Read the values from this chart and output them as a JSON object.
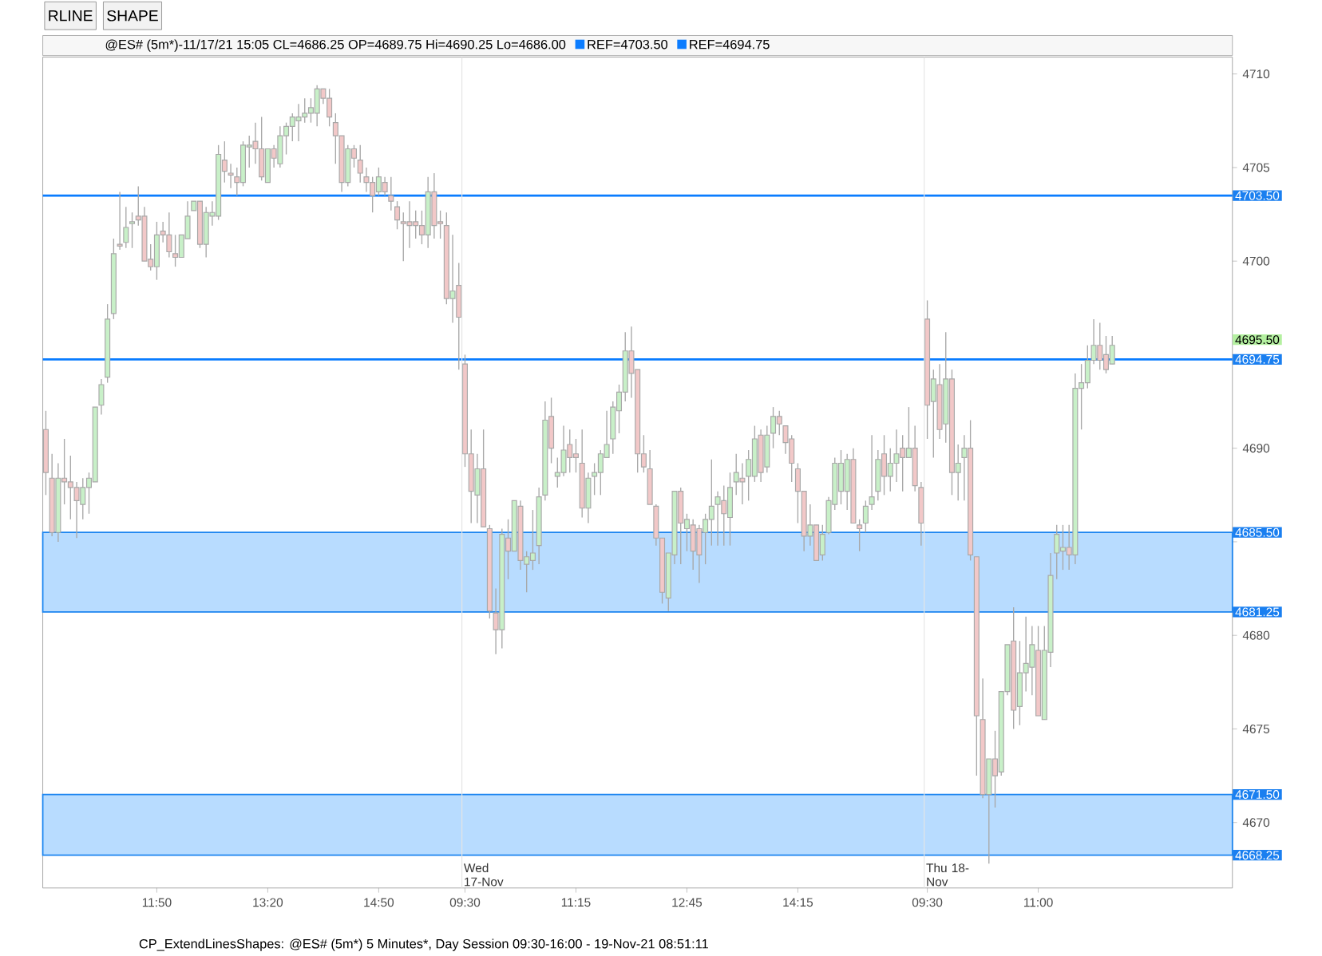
{
  "chart_data": {
    "type": "candlestick",
    "title": "@ES# (5m*)-11/17/21 15:05 CL=4686.25 OP=4689.75 Hi=4690.25 Lo=4686.00",
    "ylim": [
      4666.5,
      4710.9
    ],
    "yticks": [
      4670,
      4675,
      4680,
      {
        "value": 4685,
        "label": null
      },
      4690,
      {
        "value": 4695,
        "label": null
      },
      4700,
      4705,
      4710,
      {
        "value": 4703.5,
        "label": "4703.50"
      },
      {
        "value": 4695.5,
        "label": "4695.50"
      },
      {
        "value": 4694.75,
        "label": "4694.75"
      },
      {
        "value": 4685.5,
        "label": "4685.50"
      },
      {
        "value": 4681.25,
        "label": "4681.25"
      },
      {
        "value": 4671.5,
        "label": "4671.50"
      },
      {
        "value": 4668.25,
        "label": "4668.25"
      }
    ],
    "legend": "top",
    "categories": [
      null,
      null,
      null,
      null,
      null,
      null,
      null,
      null,
      null,
      null,
      null,
      null,
      null,
      null,
      null,
      null,
      null,
      null,
      "11:50",
      null,
      null,
      null,
      null,
      null,
      null,
      null,
      null,
      null,
      null,
      null,
      null,
      null,
      null,
      null,
      null,
      null,
      "13:20",
      null,
      null,
      null,
      null,
      null,
      null,
      null,
      null,
      null,
      null,
      null,
      null,
      null,
      null,
      null,
      null,
      null,
      "14:50",
      null,
      null,
      null,
      null,
      null,
      null,
      null,
      null,
      null,
      null,
      null,
      null,
      null,
      "09:30",
      null,
      null,
      null,
      null,
      null,
      null,
      null,
      null,
      null,
      null,
      null,
      null,
      null,
      null,
      null,
      null,
      null,
      "11:15",
      null,
      null,
      null,
      null,
      null,
      null,
      null,
      null,
      null,
      null,
      null,
      null,
      null,
      null,
      null,
      null,
      null,
      "12:45",
      null,
      null,
      null,
      null,
      null,
      null,
      null,
      null,
      null,
      null,
      null,
      null,
      null,
      null,
      null,
      null,
      null,
      "14:15",
      null,
      null,
      null,
      null,
      null,
      null,
      null,
      null,
      null,
      null,
      null,
      null,
      null,
      null,
      null,
      null,
      null,
      null,
      null,
      null,
      "09:30",
      null,
      null,
      null,
      null,
      null,
      null,
      null,
      null,
      null,
      null,
      null,
      null,
      null,
      null,
      null,
      null,
      null,
      "11:00",
      null,
      null,
      null,
      null,
      null,
      null,
      null,
      null,
      null,
      null,
      null,
      null,
      null,
      null,
      null,
      null,
      null,
      null,
      null,
      null,
      null,
      null,
      null,
      null,
      null,
      null,
      null,
      null,
      null,
      null,
      null
    ],
    "ohlc": [
      [
        4691.0,
        4692.0,
        4687.5,
        4688.7
      ],
      [
        4688.4,
        4689.7,
        4685.3,
        4685.5
      ],
      [
        4685.5,
        4689.2,
        4685.0,
        4688.4
      ],
      [
        4688.4,
        4690.5,
        4687.0,
        4688.2
      ],
      [
        4688.2,
        4689.6,
        4686.2,
        4687.9
      ],
      [
        4687.9,
        4688.2,
        4685.2,
        4687.2
      ],
      [
        4687.0,
        4688.4,
        4686.2,
        4687.9
      ],
      [
        4687.9,
        4688.7,
        4686.5,
        4688.4
      ],
      [
        4688.2,
        4692.2,
        4688.2,
        4692.2
      ],
      [
        4692.3,
        4693.7,
        4691.8,
        4693.4
      ],
      [
        4693.8,
        4697.7,
        4693.5,
        4696.9
      ],
      [
        4697.2,
        4701.2,
        4696.9,
        4700.4
      ],
      [
        4700.9,
        4703.7,
        4700.6,
        4700.8
      ],
      [
        4701.0,
        4702.9,
        4700.7,
        4701.8
      ],
      [
        4702.0,
        4702.6,
        4700.7,
        4702.1
      ],
      [
        4702.4,
        4704.0,
        4701.9,
        4702.2
      ],
      [
        4702.4,
        4702.9,
        4700.0,
        4700.0
      ],
      [
        4700.1,
        4700.9,
        4699.5,
        4699.7
      ],
      [
        4699.7,
        4702.1,
        4699.0,
        4701.4
      ],
      [
        4701.6,
        4702.1,
        4701.0,
        4701.4
      ],
      [
        4701.4,
        4702.6,
        4700.2,
        4700.5
      ],
      [
        4700.4,
        4701.4,
        4699.7,
        4700.2
      ],
      [
        4700.2,
        4701.4,
        4700.2,
        4701.4
      ],
      [
        4701.2,
        4703.2,
        4701.2,
        4702.4
      ],
      [
        4702.7,
        4703.2,
        4702.7,
        4703.2
      ],
      [
        4703.2,
        4703.2,
        4700.7,
        4700.9
      ],
      [
        4700.9,
        4702.9,
        4700.2,
        4702.6
      ],
      [
        4702.4,
        4703.2,
        4701.9,
        4702.6
      ],
      [
        4702.4,
        4706.2,
        4702.2,
        4705.7
      ],
      [
        4705.4,
        4706.4,
        4704.2,
        4704.8
      ],
      [
        4704.7,
        4705.2,
        4703.9,
        4704.6
      ],
      [
        4704.5,
        4705.0,
        4703.5,
        4704.2
      ],
      [
        4704.2,
        4706.4,
        4704.0,
        4706.2
      ],
      [
        4706.1,
        4706.7,
        4705.0,
        4706.2
      ],
      [
        4706.4,
        4707.4,
        4705.2,
        4706.0
      ],
      [
        4706.0,
        4707.7,
        4704.3,
        4704.5
      ],
      [
        4704.2,
        4706.0,
        4704.2,
        4706.0
      ],
      [
        4706.0,
        4706.2,
        4705.0,
        4705.5
      ],
      [
        4705.2,
        4707.2,
        4705.0,
        4706.7
      ],
      [
        4706.7,
        4707.4,
        4705.7,
        4707.2
      ],
      [
        4707.2,
        4707.9,
        4706.4,
        4707.7
      ],
      [
        4707.5,
        4708.4,
        4706.4,
        4707.7
      ],
      [
        4707.7,
        4708.7,
        4707.4,
        4707.9
      ],
      [
        4707.9,
        4708.7,
        4707.4,
        4708.2
      ],
      [
        4707.9,
        4709.4,
        4707.2,
        4709.2
      ],
      [
        4709.2,
        4709.2,
        4708.4,
        4708.7
      ],
      [
        4708.7,
        4709.2,
        4707.2,
        4707.7
      ],
      [
        4707.4,
        4707.9,
        4705.2,
        4706.7
      ],
      [
        4706.7,
        4706.7,
        4703.7,
        4704.2
      ],
      [
        4704.2,
        4706.2,
        4704.0,
        4706.0
      ],
      [
        4706.0,
        4706.2,
        4705.0,
        4705.5
      ],
      [
        4705.4,
        4706.2,
        4704.2,
        4704.7
      ],
      [
        4704.5,
        4705.0,
        4703.7,
        4704.2
      ],
      [
        4704.2,
        4704.5,
        4702.6,
        4703.5
      ],
      [
        4703.7,
        4705.0,
        4703.5,
        4704.5
      ],
      [
        4704.2,
        4704.5,
        4703.5,
        4703.7
      ],
      [
        4703.5,
        4704.5,
        4702.7,
        4703.2
      ],
      [
        4702.9,
        4703.2,
        4701.7,
        4702.2
      ],
      [
        4702.1,
        4702.6,
        4700.0,
        4702.0
      ],
      [
        4702.1,
        4703.2,
        4700.7,
        4701.9
      ],
      [
        4702.1,
        4702.7,
        4701.2,
        4701.9
      ],
      [
        4701.9,
        4702.7,
        4700.9,
        4701.4
      ],
      [
        4701.4,
        4704.5,
        4700.7,
        4703.7
      ],
      [
        4703.7,
        4704.7,
        4701.2,
        4701.9
      ],
      [
        4702.1,
        4702.7,
        4701.2,
        4702.0
      ],
      [
        4701.9,
        4702.6,
        4697.7,
        4698.0
      ],
      [
        4698.0,
        4701.4,
        4696.7,
        4698.4
      ],
      [
        4698.7,
        4699.9,
        4694.2,
        4697.0
      ],
      [
        4694.5,
        4695.0,
        4689.0,
        4689.7
      ],
      [
        4689.7,
        4691.0,
        4686.0,
        4687.7
      ],
      [
        4687.5,
        4689.7,
        4686.0,
        4688.9
      ],
      [
        4688.9,
        4691.0,
        4685.8,
        4685.8
      ],
      [
        4685.7,
        4685.9,
        4680.9,
        4681.3
      ],
      [
        4681.2,
        4682.5,
        4679.0,
        4680.3
      ],
      [
        4680.3,
        4685.7,
        4679.3,
        4685.4
      ],
      [
        4685.2,
        4686.2,
        4683.0,
        4684.5
      ],
      [
        4684.5,
        4687.2,
        4684.5,
        4687.2
      ],
      [
        4686.9,
        4687.2,
        4683.5,
        4684.0
      ],
      [
        4683.8,
        4684.5,
        4682.3,
        4684.2
      ],
      [
        4684.0,
        4686.7,
        4683.5,
        4684.4
      ],
      [
        4684.8,
        4687.9,
        4683.8,
        4687.4
      ],
      [
        4687.5,
        4692.5,
        4687.2,
        4691.5
      ],
      [
        4691.7,
        4692.7,
        4689.2,
        4690.0
      ],
      [
        4688.5,
        4689.5,
        4687.9,
        4688.7
      ],
      [
        4688.7,
        4691.2,
        4688.5,
        4689.9
      ],
      [
        4690.2,
        4691.0,
        4688.7,
        4689.5
      ],
      [
        4689.7,
        4690.5,
        4688.7,
        4689.5
      ],
      [
        4689.2,
        4691.0,
        4686.3,
        4686.8
      ],
      [
        4686.8,
        4688.7,
        4686.0,
        4688.4
      ],
      [
        4688.5,
        4689.2,
        4687.5,
        4688.7
      ],
      [
        4688.7,
        4689.9,
        4687.5,
        4689.7
      ],
      [
        4689.5,
        4692.0,
        4689.5,
        4690.2
      ],
      [
        4690.5,
        4692.5,
        4689.7,
        4692.2
      ],
      [
        4692.0,
        4693.4,
        4690.8,
        4693.0
      ],
      [
        4693.0,
        4696.2,
        4692.5,
        4695.2
      ],
      [
        4695.2,
        4696.5,
        4692.7,
        4694.0
      ],
      [
        4694.2,
        4694.2,
        4688.7,
        4689.7
      ],
      [
        4689.7,
        4690.7,
        4688.7,
        4689.0
      ],
      [
        4688.9,
        4689.9,
        4687.0,
        4687.0
      ],
      [
        4686.9,
        4687.0,
        4684.8,
        4685.2
      ],
      [
        4685.2,
        4685.2,
        4681.7,
        4682.3
      ],
      [
        4682.0,
        4684.4,
        4681.3,
        4684.4
      ],
      [
        4684.3,
        4687.7,
        4683.8,
        4687.7
      ],
      [
        4687.7,
        4687.9,
        4683.8,
        4686.0
      ],
      [
        4685.7,
        4686.5,
        4684.5,
        4686.2
      ],
      [
        4685.9,
        4686.2,
        4683.5,
        4684.5
      ],
      [
        4685.7,
        4685.9,
        4682.8,
        4684.3
      ],
      [
        4685.5,
        4686.5,
        4683.8,
        4686.2
      ],
      [
        4686.2,
        4689.4,
        4684.8,
        4686.9
      ],
      [
        4687.0,
        4687.7,
        4684.8,
        4687.4
      ],
      [
        4687.2,
        4688.0,
        4684.8,
        4686.5
      ],
      [
        4686.3,
        4688.7,
        4684.8,
        4687.9
      ],
      [
        4688.2,
        4689.7,
        4687.5,
        4688.7
      ],
      [
        4688.4,
        4689.2,
        4687.0,
        4688.2
      ],
      [
        4688.5,
        4689.9,
        4687.2,
        4689.4
      ],
      [
        4688.5,
        4691.2,
        4688.2,
        4690.5
      ],
      [
        4690.7,
        4691.0,
        4688.2,
        4688.7
      ],
      [
        4689.0,
        4691.2,
        4688.7,
        4690.7
      ],
      [
        4690.8,
        4692.2,
        4690.0,
        4691.7
      ],
      [
        4691.7,
        4692.0,
        4690.7,
        4691.3
      ],
      [
        4691.2,
        4691.2,
        4689.7,
        4690.3
      ],
      [
        4690.5,
        4690.7,
        4688.2,
        4689.2
      ],
      [
        4688.9,
        4689.2,
        4686.0,
        4687.7
      ],
      [
        4687.7,
        4687.7,
        4684.5,
        4685.3
      ],
      [
        4685.3,
        4687.0,
        4684.8,
        4685.9
      ],
      [
        4685.9,
        4685.9,
        4684.0,
        4684.0
      ],
      [
        4684.3,
        4685.9,
        4684.0,
        4685.4
      ],
      [
        4685.5,
        4687.4,
        4685.4,
        4687.2
      ],
      [
        4687.0,
        4689.5,
        4686.7,
        4689.2
      ],
      [
        4687.7,
        4689.9,
        4687.0,
        4689.2
      ],
      [
        4687.7,
        4689.7,
        4686.7,
        4689.4
      ],
      [
        4689.4,
        4690.0,
        4686.0,
        4686.0
      ],
      [
        4685.9,
        4686.2,
        4684.5,
        4685.7
      ],
      [
        4686.0,
        4687.2,
        4685.5,
        4686.9
      ],
      [
        4687.0,
        4690.7,
        4686.7,
        4687.4
      ],
      [
        4687.7,
        4689.9,
        4687.2,
        4689.4
      ],
      [
        4689.7,
        4690.7,
        4687.5,
        4688.5
      ],
      [
        4688.5,
        4690.0,
        4687.7,
        4689.2
      ],
      [
        4689.2,
        4691.0,
        4688.2,
        4689.7
      ],
      [
        4690.0,
        4690.7,
        4687.7,
        4689.5
      ],
      [
        4689.5,
        4692.2,
        4689.5,
        4690.0
      ],
      [
        4690.0,
        4691.2,
        4687.7,
        4688.0
      ],
      [
        4687.9,
        4688.2,
        4684.8,
        4686.0
      ],
      [
        4696.9,
        4697.9,
        4690.5,
        4692.3
      ],
      [
        4692.5,
        4694.2,
        4689.5,
        4693.7
      ],
      [
        4693.4,
        4694.5,
        4690.5,
        4691.0
      ],
      [
        4691.3,
        4696.2,
        4690.3,
        4693.7
      ],
      [
        4693.7,
        4694.2,
        4687.5,
        4688.7
      ],
      [
        4688.7,
        4690.2,
        4687.2,
        4689.2
      ],
      [
        4689.5,
        4690.7,
        4687.2,
        4690.0
      ],
      [
        4690.0,
        4691.5,
        4684.0,
        4684.3
      ],
      [
        4684.2,
        4684.2,
        4672.5,
        4675.7
      ],
      [
        4675.5,
        4677.7,
        4671.3,
        4671.5
      ],
      [
        4671.5,
        4673.4,
        4667.8,
        4673.4
      ],
      [
        4673.4,
        4674.9,
        4670.8,
        4672.5
      ],
      [
        4672.7,
        4677.0,
        4672.5,
        4677.0
      ],
      [
        4677.0,
        4679.5,
        4676.8,
        4679.5
      ],
      [
        4679.7,
        4681.5,
        4675.0,
        4676.0
      ],
      [
        4676.2,
        4679.7,
        4675.2,
        4678.0
      ],
      [
        4678.0,
        4681.0,
        4677.0,
        4678.5
      ],
      [
        4678.3,
        4680.5,
        4676.8,
        4679.5
      ],
      [
        4679.2,
        4680.5,
        4675.7,
        4675.7
      ],
      [
        4675.5,
        4680.5,
        4675.5,
        4679.2
      ],
      [
        4679.1,
        4684.4,
        4678.3,
        4683.2
      ],
      [
        4684.4,
        4685.9,
        4683.0,
        4685.4
      ],
      [
        4684.5,
        4685.9,
        4683.5,
        4684.7
      ],
      [
        4684.7,
        4685.9,
        4683.5,
        4684.3
      ],
      [
        4684.3,
        4694.0,
        4683.8,
        4693.2
      ],
      [
        4693.2,
        4694.5,
        4691.0,
        4693.5
      ],
      [
        4693.5,
        4695.5,
        4693.2,
        4694.7
      ],
      [
        4694.7,
        4696.9,
        4694.5,
        4695.5
      ],
      [
        4695.5,
        4696.7,
        4694.2,
        4694.7
      ],
      [
        4695.0,
        4696.0,
        4694.0,
        4694.2
      ],
      [
        4694.5,
        4696.0,
        4694.5,
        4695.5
      ],
      null,
      null,
      null,
      null,
      null,
      null,
      null,
      null,
      null,
      null,
      null,
      null,
      null,
      null,
      null,
      null,
      null,
      null,
      null
    ],
    "ref_lines": [
      {
        "axis": "y",
        "value": 4703.5,
        "label": "REF=4703.50",
        "color": "#0a7cff"
      },
      {
        "axis": "y",
        "value": 4694.75,
        "label": "REF=4694.75",
        "color": "#0a7cff"
      }
    ],
    "bands": [
      {
        "axis": "y",
        "from": 4681.25,
        "to": 4685.5,
        "color": "#b8dcff"
      },
      {
        "axis": "y",
        "from": 4668.25,
        "to": 4671.5,
        "color": "#b8dcff"
      }
    ],
    "annotations": [
      "RLINE",
      "SHAPE",
      "Wed 17-Nov",
      "Thu 18-Nov",
      "CP_ExtendLinesShapes: @ES# (5m*) 5 Minutes*, Day Session 09:30-16:00 - 19-Nov-21 08:51:11"
    ]
  }
}
